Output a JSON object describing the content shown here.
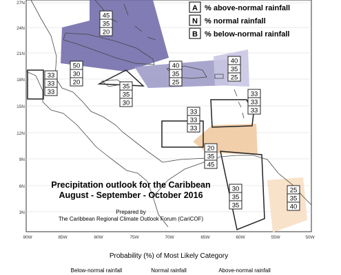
{
  "legend": {
    "A": "% above-normal rainfall",
    "N": "% normal rainfall",
    "B": "% below-normal rainfall"
  },
  "lat_ticks": [
    "27N",
    "24N",
    "21N",
    "18N",
    "15N",
    "12N",
    "9N",
    "6N",
    "3N"
  ],
  "lon_ticks": [
    "90W",
    "85W",
    "80W",
    "75W",
    "70W",
    "65W",
    "60W",
    "55W",
    "50W"
  ],
  "title_line1": "Precipitation outlook for the Caribbean",
  "title_line2": "August - September - October 2016",
  "prepared_by": "Prepared by",
  "forum": "The Caribbean Regional Climate Outlook Forum (CariCOF)",
  "probability_title": "Probability (%) of Most Likely Category",
  "category_below": "Below-normal rainfall",
  "category_normal": "Normal rainfall",
  "category_above": "Above-normal rainfall",
  "colors": {
    "above_dark": "#6f6aa8",
    "above_mid": "#9a96c6",
    "above_light": "#c9c7e3",
    "below_mid": "#efc79c",
    "below_light": "#f8dfc4"
  },
  "regions": [
    {
      "name": "bahamas",
      "A": "45",
      "N": "35",
      "B": "20"
    },
    {
      "name": "cuba",
      "A": "50",
      "N": "30",
      "B": "20"
    },
    {
      "name": "hispaniola-puerto-rico",
      "A": "40",
      "N": "35",
      "B": "25"
    },
    {
      "name": "northern-leeward-islands",
      "A": "40",
      "N": "35",
      "B": "25"
    },
    {
      "name": "belize",
      "A": "33",
      "N": "33",
      "B": "33"
    },
    {
      "name": "jamaica",
      "A": "35",
      "N": "35",
      "B": "30"
    },
    {
      "name": "windward-islands",
      "A": "33",
      "N": "33",
      "B": "33"
    },
    {
      "name": "abc-islands",
      "A": "33",
      "N": "33",
      "B": "33"
    },
    {
      "name": "trinidad-tobago",
      "A": "20",
      "N": "35",
      "B": "45"
    },
    {
      "name": "guyana",
      "A": "30",
      "N": "35",
      "B": "35"
    },
    {
      "name": "french-guiana",
      "A": "25",
      "N": "35",
      "B": "40"
    }
  ]
}
